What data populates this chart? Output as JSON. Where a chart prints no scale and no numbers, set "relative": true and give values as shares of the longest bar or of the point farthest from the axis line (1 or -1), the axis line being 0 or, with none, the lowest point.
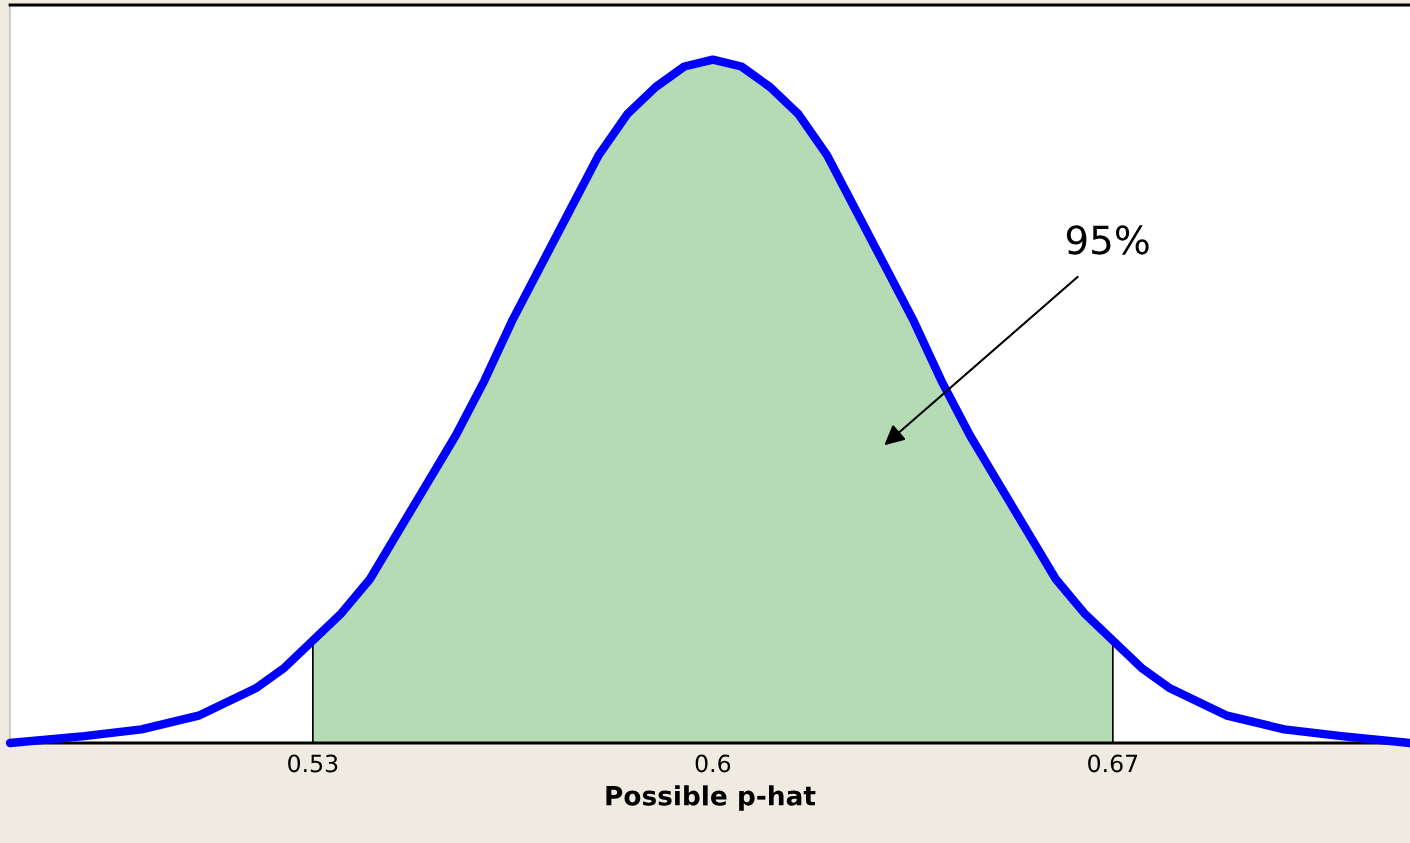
{
  "chart_data": {
    "type": "line",
    "relative": true,
    "xlabel": "Possible p-hat",
    "xlim": [
      0.477,
      0.722
    ],
    "xticks": [
      0.53,
      0.6,
      0.67
    ],
    "tick_labels": "x",
    "series": [
      {
        "type": "area",
        "color": "#b5dbb5",
        "x": [
          0.53,
          0.535,
          0.54,
          0.545,
          0.55,
          0.555,
          0.56,
          0.565,
          0.57,
          0.575,
          0.58,
          0.585,
          0.59,
          0.595,
          0.6,
          0.605,
          0.61,
          0.615,
          0.62,
          0.625,
          0.63,
          0.635,
          0.64,
          0.645,
          0.65,
          0.655,
          0.66,
          0.665,
          0.67
        ],
        "values": [
          0.15,
          0.19,
          0.24,
          0.31,
          0.38,
          0.45,
          0.53,
          0.62,
          0.7,
          0.78,
          0.86,
          0.92,
          0.96,
          0.99,
          1,
          0.99,
          0.96,
          0.92,
          0.86,
          0.78,
          0.7,
          0.62,
          0.53,
          0.45,
          0.38,
          0.31,
          0.24,
          0.19,
          0.15
        ]
      },
      {
        "color": "#0000ff",
        "x": [
          0.477,
          0.49,
          0.5,
          0.51,
          0.515,
          0.52,
          0.525,
          0.53,
          0.535,
          0.54,
          0.545,
          0.55,
          0.555,
          0.56,
          0.565,
          0.57,
          0.575,
          0.58,
          0.585,
          0.59,
          0.595,
          0.6,
          0.605,
          0.61,
          0.615,
          0.62,
          0.625,
          0.63,
          0.635,
          0.64,
          0.645,
          0.65,
          0.655,
          0.66,
          0.665,
          0.67,
          0.675,
          0.68,
          0.685,
          0.69,
          0.7,
          0.71,
          0.722
        ],
        "values": [
          0,
          0.01,
          0.02,
          0.04,
          0.06,
          0.08,
          0.11,
          0.15,
          0.19,
          0.24,
          0.31,
          0.38,
          0.45,
          0.53,
          0.62,
          0.7,
          0.78,
          0.86,
          0.92,
          0.96,
          0.99,
          1,
          0.99,
          0.96,
          0.92,
          0.86,
          0.78,
          0.7,
          0.62,
          0.53,
          0.45,
          0.38,
          0.31,
          0.24,
          0.19,
          0.15,
          0.11,
          0.08,
          0.06,
          0.04,
          0.02,
          0.01,
          0
        ]
      }
    ],
    "annotations": [
      "95%"
    ]
  }
}
